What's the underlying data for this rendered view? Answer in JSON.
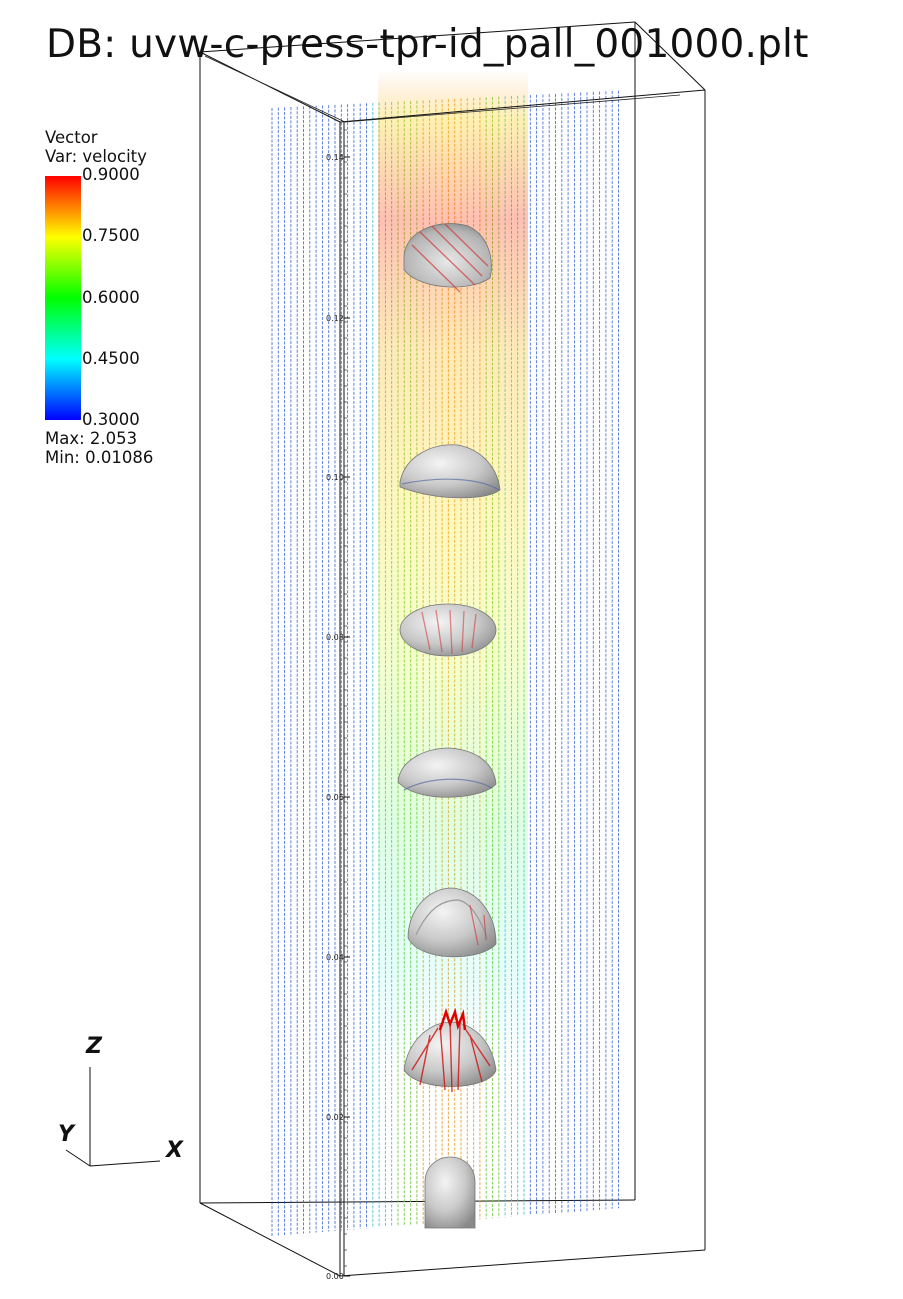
{
  "title": "DB: uvw-c-press-tpr-id_pall_001000.plt",
  "legend": {
    "line1": "Vector",
    "line2": "Var: velocity",
    "ticks": [
      "0.9000",
      "0.7500",
      "0.6000",
      "0.4500",
      "0.3000"
    ],
    "max_label": "Max:  2.053",
    "min_label": "Min:  0.01086"
  },
  "axis_ticks": [
    "0.14",
    "0.12",
    "0.10",
    "0.08",
    "0.06",
    "0.04",
    "0.02",
    "0.00"
  ],
  "triad": {
    "x": "X",
    "y": "Y",
    "z": "Z"
  },
  "colors": {
    "colorbar_top": "#ff0000",
    "colorbar_bottom": "#0000ff",
    "bubble": "#c8c8c8"
  },
  "bubbles": [
    {
      "shape": "spherical-cap",
      "level": 0.88
    },
    {
      "shape": "spherical-cap",
      "level": 0.63
    },
    {
      "shape": "ellipsoid",
      "level": 0.5
    },
    {
      "shape": "spherical-cap",
      "level": 0.37
    },
    {
      "shape": "spherical-cap",
      "level": 0.24
    },
    {
      "shape": "skirted-cap",
      "level": 0.11
    },
    {
      "shape": "dome-nozzle",
      "level": 0.0
    }
  ]
}
